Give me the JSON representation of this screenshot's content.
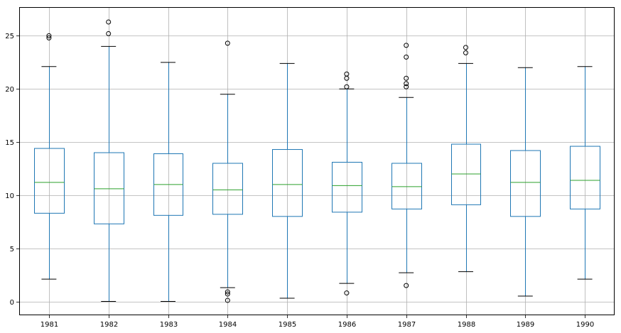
{
  "chart_data": {
    "type": "box",
    "categories": [
      "1981",
      "1982",
      "1983",
      "1984",
      "1985",
      "1986",
      "1987",
      "1988",
      "1989",
      "1990"
    ],
    "ylim": [
      -1.3,
      27.7
    ],
    "yticks": [
      "0",
      "5",
      "10",
      "15",
      "20",
      "25"
    ],
    "grid": true,
    "colors": {
      "box": "#1f77b4",
      "median": "#2ca02c",
      "whisker_cap": "#000000",
      "grid": "#b0b0b0",
      "flier": "#000000"
    },
    "boxes": [
      {
        "whislo": 2.1,
        "q1": 8.3,
        "med": 11.2,
        "q3": 14.4,
        "whishi": 22.1,
        "fliers": [
          24.8,
          25.0
        ]
      },
      {
        "whislo": 0.0,
        "q1": 7.3,
        "med": 10.6,
        "q3": 14.0,
        "whishi": 24.0,
        "fliers": [
          25.2,
          26.3
        ]
      },
      {
        "whislo": 0.0,
        "q1": 8.1,
        "med": 11.0,
        "q3": 13.9,
        "whishi": 22.5,
        "fliers": []
      },
      {
        "whislo": 1.3,
        "q1": 8.2,
        "med": 10.5,
        "q3": 13.0,
        "whishi": 19.5,
        "fliers": [
          0.1,
          0.7,
          0.9,
          24.3
        ]
      },
      {
        "whislo": 0.3,
        "q1": 8.0,
        "med": 11.0,
        "q3": 14.3,
        "whishi": 22.4,
        "fliers": []
      },
      {
        "whislo": 1.7,
        "q1": 8.4,
        "med": 10.9,
        "q3": 13.1,
        "whishi": 20.0,
        "fliers": [
          0.8,
          20.2,
          21.0,
          21.4
        ]
      },
      {
        "whislo": 2.7,
        "q1": 8.7,
        "med": 10.8,
        "q3": 13.0,
        "whishi": 19.2,
        "fliers": [
          1.5,
          20.2,
          20.5,
          21.0,
          23.0,
          24.1
        ]
      },
      {
        "whislo": 2.8,
        "q1": 9.1,
        "med": 12.0,
        "q3": 14.8,
        "whishi": 22.4,
        "fliers": [
          23.4,
          23.9
        ]
      },
      {
        "whislo": 0.5,
        "q1": 8.0,
        "med": 11.2,
        "q3": 14.2,
        "whishi": 22.0,
        "fliers": []
      },
      {
        "whislo": 2.1,
        "q1": 8.7,
        "med": 11.4,
        "q3": 14.6,
        "whishi": 22.1,
        "fliers": []
      }
    ]
  }
}
